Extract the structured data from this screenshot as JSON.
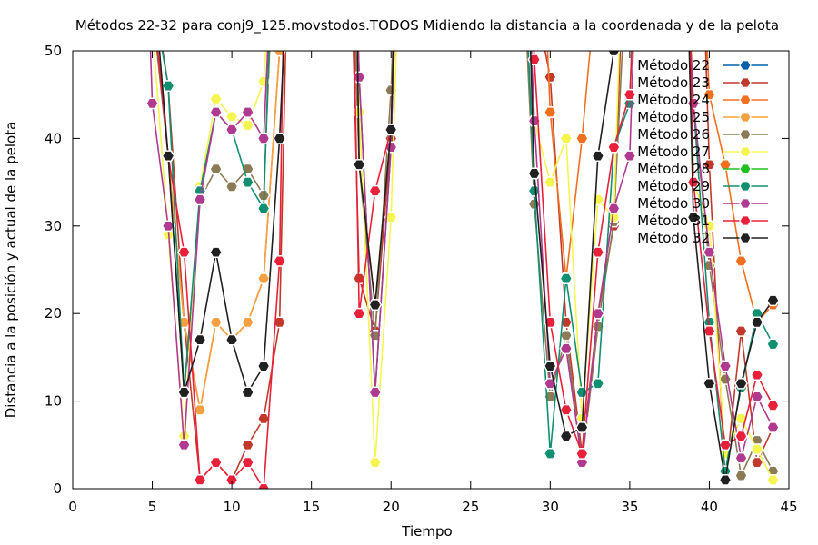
{
  "chart_data": {
    "type": "line",
    "title": "Métodos 22-32 para conj9_125.movstodos.TODOS Midiendo la distancia a la coordenada y de la pelota",
    "xlabel": "Tiempo",
    "ylabel": "Distancia a la posición y actual de la pelota",
    "xlim": [
      0,
      45
    ],
    "ylim": [
      0,
      50
    ],
    "xticks": [
      0,
      5,
      10,
      15,
      20,
      25,
      30,
      35,
      40,
      45
    ],
    "yticks": [
      0,
      10,
      20,
      30,
      40,
      50
    ],
    "grid": false,
    "legend_position": "top-right",
    "series": [
      {
        "name": "Método 22",
        "color": "#0060ad",
        "points": []
      },
      {
        "name": "Método 23",
        "color": "#c0392b",
        "points": [
          [
            4.8,
            60
          ],
          [
            6,
            46
          ],
          [
            7,
            19
          ],
          [
            8,
            1
          ],
          [
            9,
            3
          ],
          [
            10,
            1
          ],
          [
            11,
            5
          ],
          [
            12,
            8
          ],
          [
            13,
            19
          ],
          [
            13.5,
            60
          ],
          null,
          [
            17.5,
            60
          ],
          [
            18,
            24
          ],
          [
            19,
            18
          ],
          [
            20,
            40
          ],
          [
            20.4,
            60
          ],
          null,
          [
            28.6,
            60
          ],
          [
            30,
            47
          ],
          [
            31,
            19
          ],
          [
            32,
            4
          ],
          [
            33,
            20
          ],
          [
            34,
            30
          ],
          [
            34.6,
            60
          ],
          null,
          [
            39.6,
            60
          ],
          [
            40,
            37
          ],
          [
            41,
            1
          ],
          [
            42,
            18
          ],
          [
            43,
            3
          ],
          [
            44,
            7
          ]
        ]
      },
      {
        "name": "Método 24",
        "color": "#f07020",
        "points": [
          [
            4.8,
            60
          ],
          [
            6,
            38
          ],
          [
            7,
            19
          ],
          [
            8,
            9
          ],
          [
            9,
            19
          ],
          [
            10,
            17
          ],
          [
            11,
            19
          ],
          [
            12,
            24
          ],
          [
            13,
            50
          ],
          [
            13.3,
            60
          ],
          null,
          [
            17.6,
            60
          ],
          [
            18,
            37
          ],
          [
            19,
            21
          ],
          [
            20,
            41
          ],
          [
            20.4,
            60
          ],
          null,
          [
            29.6,
            60
          ],
          [
            30,
            43
          ],
          [
            31,
            24
          ],
          [
            32,
            40
          ],
          [
            33,
            60
          ],
          null,
          [
            39.6,
            60
          ],
          [
            40,
            45
          ],
          [
            41,
            37
          ],
          [
            42,
            26
          ],
          [
            43,
            19
          ],
          [
            44,
            21
          ]
        ]
      },
      {
        "name": "Método 25",
        "color": "#f5a040",
        "points": [
          [
            4.8,
            60
          ],
          [
            6,
            38
          ],
          [
            7,
            19
          ],
          [
            8,
            9
          ],
          [
            9,
            19
          ],
          [
            10,
            17
          ],
          [
            11,
            19
          ],
          [
            12,
            24
          ],
          [
            13,
            50
          ],
          [
            13.3,
            60
          ]
        ]
      },
      {
        "name": "Método 26",
        "color": "#8b7b55",
        "points": [
          [
            4.7,
            60
          ],
          [
            6,
            38
          ],
          [
            7,
            11
          ],
          [
            8,
            33
          ],
          [
            9,
            36.5
          ],
          [
            10,
            34.5
          ],
          [
            11,
            36.5
          ],
          [
            12,
            33.5
          ],
          [
            12.6,
            60
          ],
          null,
          [
            17.6,
            60
          ],
          [
            18,
            37
          ],
          [
            19,
            17.5
          ],
          [
            20,
            45.5
          ],
          [
            20.3,
            60
          ],
          null,
          [
            28.3,
            60
          ],
          [
            29,
            32.5
          ],
          [
            30,
            10.5
          ],
          [
            31,
            17.5
          ],
          [
            32,
            3
          ],
          [
            33,
            18.5
          ],
          [
            34,
            30.5
          ],
          [
            34.8,
            60
          ],
          null,
          [
            38.6,
            60
          ],
          [
            39,
            44
          ],
          [
            40,
            25.5
          ],
          [
            41,
            12.5
          ],
          [
            42,
            1.5
          ],
          [
            43,
            5.5
          ],
          [
            44,
            2
          ]
        ]
      },
      {
        "name": "Método 27",
        "color": "#f5f550",
        "points": [
          [
            4.7,
            60
          ],
          [
            6,
            29
          ],
          [
            7,
            6
          ],
          [
            8,
            34.5
          ],
          [
            9,
            44.5
          ],
          [
            10,
            42.5
          ],
          [
            11,
            41.5
          ],
          [
            12,
            46.5
          ],
          [
            12.5,
            60
          ],
          null,
          [
            17.8,
            60
          ],
          [
            18,
            43
          ],
          [
            19,
            3
          ],
          [
            20,
            31
          ],
          [
            20.5,
            60
          ],
          null,
          [
            28.6,
            60
          ],
          [
            29,
            42
          ],
          [
            30,
            35
          ],
          [
            31,
            40
          ],
          [
            32,
            8
          ],
          [
            33,
            33
          ],
          [
            34,
            31
          ],
          [
            34.5,
            60
          ],
          null,
          [
            38.8,
            60
          ],
          [
            39,
            35
          ],
          [
            40,
            30
          ],
          [
            41,
            4
          ],
          [
            42,
            8
          ],
          [
            43,
            4.5
          ],
          [
            44,
            1
          ]
        ]
      },
      {
        "name": "Método 28",
        "color": "#20c020",
        "points": []
      },
      {
        "name": "Método 29",
        "color": "#109070",
        "points": [
          [
            4.7,
            60
          ],
          [
            6,
            46
          ],
          [
            7,
            11
          ],
          [
            8,
            34
          ],
          [
            9,
            43
          ],
          [
            10,
            41
          ],
          [
            11,
            35
          ],
          [
            12,
            32
          ],
          [
            12.5,
            60
          ],
          null,
          [
            17.8,
            60
          ],
          [
            18,
            47
          ],
          [
            19,
            11
          ],
          [
            20,
            39
          ],
          [
            20.3,
            60
          ],
          null,
          [
            28.4,
            60
          ],
          [
            29,
            34
          ],
          [
            30,
            4
          ],
          [
            31,
            24
          ],
          [
            32,
            11
          ],
          [
            33,
            12
          ],
          [
            34,
            39
          ],
          [
            35,
            44
          ],
          [
            35.3,
            60
          ],
          null,
          [
            38.5,
            60
          ],
          [
            39,
            44
          ],
          [
            40,
            19
          ],
          [
            41,
            2
          ],
          [
            42,
            11.5
          ],
          [
            43,
            20
          ],
          [
            44,
            16.5
          ]
        ]
      },
      {
        "name": "Método 30",
        "color": "#b03a90",
        "points": [
          [
            4.7,
            60
          ],
          [
            5,
            44
          ],
          [
            6,
            30
          ],
          [
            7,
            5
          ],
          [
            8,
            33
          ],
          [
            9,
            43
          ],
          [
            10,
            41
          ],
          [
            11,
            43
          ],
          [
            12,
            40
          ],
          [
            12.5,
            60
          ],
          null,
          [
            17.8,
            60
          ],
          [
            18,
            47
          ],
          [
            19,
            11
          ],
          [
            20,
            39
          ],
          [
            20.3,
            60
          ],
          null,
          [
            28.6,
            60
          ],
          [
            29,
            42
          ],
          [
            30,
            12
          ],
          [
            31,
            16
          ],
          [
            32,
            3
          ],
          [
            33,
            20
          ],
          [
            34,
            32
          ],
          [
            35,
            38
          ],
          [
            35.4,
            60
          ],
          null,
          [
            38.6,
            60
          ],
          [
            39,
            44
          ],
          [
            40,
            27
          ],
          [
            41,
            14
          ],
          [
            42,
            3.5
          ],
          [
            43,
            10.5
          ],
          [
            44,
            7
          ]
        ]
      },
      {
        "name": "Método 31",
        "color": "#e8203a",
        "points": [
          [
            4.8,
            60
          ],
          [
            6,
            38
          ],
          [
            7,
            27
          ],
          [
            8,
            1
          ],
          [
            9,
            3
          ],
          [
            10,
            1
          ],
          [
            11,
            3
          ],
          [
            12,
            0
          ],
          [
            13,
            26
          ],
          [
            13.3,
            60
          ],
          null,
          [
            17.6,
            60
          ],
          [
            18,
            20
          ],
          [
            19,
            34
          ],
          [
            20,
            41
          ],
          [
            20.3,
            60
          ],
          null,
          [
            28.8,
            60
          ],
          [
            29,
            49
          ],
          [
            30,
            19
          ],
          [
            31,
            9
          ],
          [
            32,
            4
          ],
          [
            33,
            27
          ],
          [
            34,
            39
          ],
          [
            35,
            45
          ],
          [
            35.4,
            60
          ],
          null,
          [
            38.7,
            60
          ],
          [
            39,
            35
          ],
          [
            40,
            18
          ],
          [
            41,
            5
          ],
          [
            42,
            6
          ],
          [
            43,
            13
          ],
          [
            44,
            9.5
          ]
        ]
      },
      {
        "name": "Método 32",
        "color": "#202020",
        "points": [
          [
            5,
            60
          ],
          [
            6,
            38
          ],
          [
            7,
            11
          ],
          [
            8,
            17
          ],
          [
            9,
            27
          ],
          [
            10,
            17
          ],
          [
            11,
            11
          ],
          [
            12,
            14
          ],
          [
            13,
            40
          ],
          [
            13.5,
            60
          ],
          null,
          [
            17.8,
            60
          ],
          [
            18,
            37
          ],
          [
            19,
            21
          ],
          [
            20,
            41
          ],
          [
            20.3,
            60
          ],
          null,
          [
            28.6,
            60
          ],
          [
            29,
            36
          ],
          [
            30,
            14
          ],
          [
            31,
            6
          ],
          [
            32,
            7
          ],
          [
            33,
            38
          ],
          [
            34,
            50
          ],
          [
            34.3,
            60
          ],
          null,
          [
            38.6,
            60
          ],
          [
            39,
            31
          ],
          [
            40,
            12
          ],
          [
            41,
            1
          ],
          [
            42,
            12
          ],
          [
            43,
            19
          ],
          [
            44,
            21.5
          ]
        ]
      }
    ]
  }
}
